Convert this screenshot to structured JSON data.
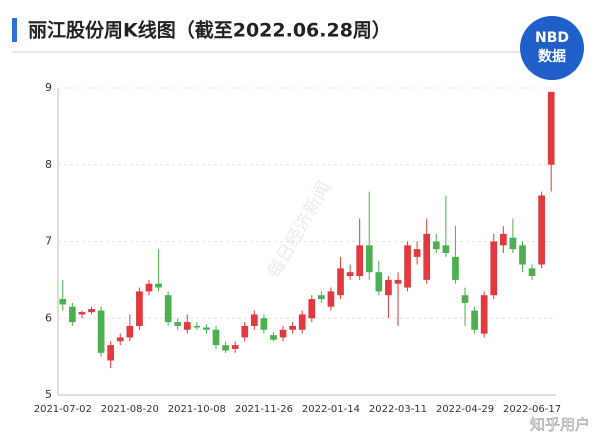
{
  "chart_data": {
    "type": "candlestick",
    "title": "丽江股份周K线图（截至2022.06.28周）",
    "logo": {
      "top": "NBD",
      "bottom": "数据"
    },
    "watermark": "每日经济新闻",
    "footer": "知乎用户",
    "categories": [
      "2021-07-02",
      null,
      null,
      null,
      null,
      null,
      null,
      "2021-08-20",
      null,
      null,
      null,
      null,
      null,
      null,
      "2021-10-08",
      null,
      null,
      null,
      null,
      null,
      null,
      "2021-11-26",
      null,
      null,
      null,
      null,
      null,
      null,
      "2022-01-14",
      null,
      null,
      null,
      null,
      null,
      null,
      "2022-03-11",
      null,
      null,
      null,
      null,
      null,
      null,
      "2022-04-29",
      null,
      null,
      null,
      null,
      null,
      null,
      "2022-06-17",
      null,
      null
    ],
    "open": [
      6.25,
      6.15,
      6.05,
      6.08,
      6.1,
      5.45,
      5.7,
      5.75,
      5.9,
      6.35,
      6.45,
      6.3,
      5.95,
      5.85,
      5.9,
      5.88,
      5.85,
      5.65,
      5.6,
      5.75,
      5.9,
      6.0,
      5.78,
      5.75,
      5.85,
      5.85,
      6.0,
      6.3,
      6.15,
      6.3,
      6.55,
      6.55,
      6.95,
      6.6,
      6.3,
      6.45,
      6.4,
      6.8,
      6.5,
      7.0,
      6.95,
      6.8,
      6.3,
      6.1,
      5.8,
      6.3,
      6.95,
      7.05,
      6.95,
      6.65,
      6.7,
      8.0
    ],
    "high": [
      6.5,
      6.2,
      6.1,
      6.15,
      6.15,
      5.7,
      5.8,
      6.05,
      6.4,
      6.5,
      6.9,
      6.35,
      6.0,
      6.05,
      5.95,
      5.92,
      5.9,
      5.7,
      5.7,
      5.95,
      6.1,
      6.05,
      5.82,
      5.9,
      5.95,
      6.1,
      6.3,
      6.35,
      6.4,
      6.8,
      6.7,
      7.3,
      7.65,
      6.75,
      6.55,
      6.6,
      7.0,
      7.0,
      7.3,
      7.1,
      7.6,
      7.2,
      6.4,
      6.15,
      6.35,
      7.1,
      7.2,
      7.3,
      7.0,
      6.7,
      7.65,
      8.95
    ],
    "low": [
      6.1,
      5.9,
      6.0,
      6.05,
      5.5,
      5.35,
      5.65,
      5.7,
      5.85,
      6.3,
      6.35,
      5.9,
      5.85,
      5.8,
      5.85,
      5.8,
      5.6,
      5.55,
      5.55,
      5.7,
      5.85,
      5.8,
      5.7,
      5.7,
      5.8,
      5.8,
      5.95,
      6.2,
      6.1,
      6.25,
      6.5,
      6.5,
      6.5,
      6.3,
      6.0,
      5.9,
      6.35,
      6.7,
      6.45,
      6.85,
      6.8,
      6.45,
      5.9,
      5.8,
      5.75,
      6.25,
      6.85,
      6.85,
      6.6,
      6.5,
      6.65,
      7.65
    ],
    "close": [
      6.18,
      5.95,
      6.08,
      6.12,
      5.55,
      5.65,
      5.75,
      5.9,
      6.35,
      6.45,
      6.4,
      5.95,
      5.9,
      5.95,
      5.88,
      5.85,
      5.65,
      5.58,
      5.65,
      5.9,
      6.05,
      5.85,
      5.72,
      5.85,
      5.9,
      6.05,
      6.25,
      6.25,
      6.35,
      6.65,
      6.6,
      6.95,
      6.6,
      6.35,
      6.5,
      6.5,
      6.95,
      6.9,
      7.1,
      6.9,
      6.85,
      6.5,
      6.2,
      5.85,
      6.3,
      7.0,
      7.1,
      6.9,
      6.7,
      6.55,
      7.6,
      8.95
    ],
    "up_color": "#e0393e",
    "down_color": "#4caf50",
    "ylim": [
      5,
      9
    ],
    "yticks": [
      5,
      6,
      7,
      8,
      9
    ],
    "grid": true
  }
}
